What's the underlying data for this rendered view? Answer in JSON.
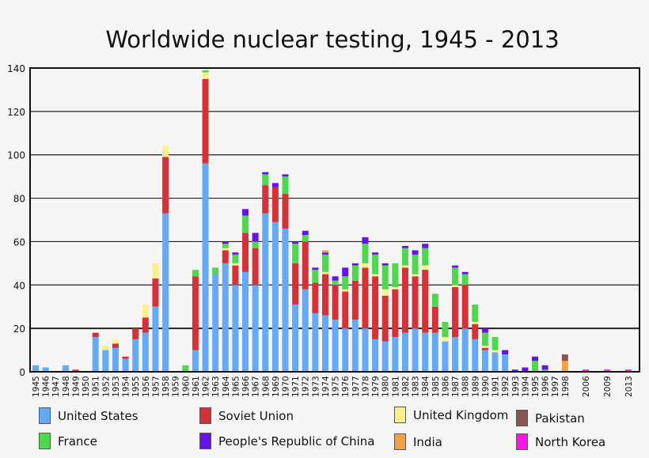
{
  "chart_data": {
    "type": "bar",
    "stacked": true,
    "title": "Worldwide nuclear testing, 1945 - 2013",
    "xlabel": "",
    "ylabel": "",
    "ylim": [
      0,
      140
    ],
    "yticks": [
      0,
      20,
      40,
      60,
      80,
      100,
      120,
      140
    ],
    "grid": true,
    "legend_position": "bottom",
    "categories": [
      "1945",
      "1946",
      "1947",
      "1948",
      "1949",
      "1950",
      "1951",
      "1952",
      "1953",
      "1954",
      "1955",
      "1956",
      "1957",
      "1958",
      "1959",
      "1960",
      "1961",
      "1962",
      "1963",
      "1964",
      "1965",
      "1966",
      "1967",
      "1968",
      "1969",
      "1970",
      "1971",
      "1972",
      "1973",
      "1974",
      "1975",
      "1976",
      "1977",
      "1978",
      "1979",
      "1980",
      "1981",
      "1982",
      "1983",
      "1984",
      "1985",
      "1986",
      "1987",
      "1988",
      "1989",
      "1990",
      "1991",
      "1992",
      "1993",
      "1994",
      "1995",
      "1996",
      "1997",
      "1998",
      "2006",
      "2009",
      "2013"
    ],
    "series": [
      {
        "name": "United States",
        "color": "#63a9fc",
        "values": [
          3,
          2,
          0,
          3,
          0,
          0,
          16,
          10,
          11,
          6,
          15,
          18,
          30,
          73,
          0,
          0,
          10,
          96,
          45,
          50,
          40,
          46,
          40,
          73,
          69,
          66,
          31,
          38,
          27,
          26,
          24,
          20,
          24,
          20,
          15,
          14,
          16,
          18,
          20,
          18,
          18,
          14,
          16,
          20,
          15,
          10,
          9,
          8,
          0,
          0,
          0,
          0,
          0,
          0,
          0,
          0,
          0
        ]
      },
      {
        "name": "Soviet Union",
        "color": "#d93036",
        "values": [
          0,
          0,
          0,
          0,
          1,
          0,
          2,
          0,
          2,
          1,
          5,
          7,
          13,
          26,
          0,
          0,
          34,
          39,
          0,
          6,
          9,
          18,
          17,
          13,
          16,
          16,
          19,
          22,
          14,
          19,
          16,
          17,
          18,
          28,
          29,
          21,
          22,
          30,
          24,
          29,
          12,
          0,
          23,
          20,
          7,
          1,
          0,
          0,
          0,
          0,
          0,
          0,
          0,
          0,
          0,
          0,
          0
        ]
      },
      {
        "name": "United Kingdom",
        "color": "#fdf08b",
        "values": [
          0,
          0,
          0,
          0,
          0,
          0,
          0,
          2,
          2,
          0,
          0,
          6,
          7,
          5,
          0,
          0,
          0,
          3,
          0,
          1,
          1,
          0,
          0,
          0,
          0,
          0,
          0,
          0,
          0,
          1,
          0,
          1,
          0,
          2,
          1,
          3,
          1,
          1,
          1,
          2,
          0,
          2,
          1,
          0,
          1,
          1,
          1,
          0,
          0,
          0,
          0,
          0,
          0,
          0,
          0,
          0,
          0
        ]
      },
      {
        "name": "France",
        "color": "#4cd94c",
        "values": [
          0,
          0,
          0,
          0,
          0,
          0,
          0,
          0,
          0,
          0,
          0,
          0,
          0,
          0,
          0,
          3,
          3,
          1,
          3,
          2,
          4,
          8,
          3,
          5,
          0,
          8,
          9,
          3,
          6,
          8,
          2,
          6,
          7,
          9,
          9,
          11,
          11,
          8,
          9,
          8,
          6,
          7,
          8,
          5,
          8,
          6,
          6,
          0,
          0,
          0,
          5,
          1,
          0,
          0,
          0,
          0,
          0
        ]
      },
      {
        "name": "People's Republic of China",
        "color": "#6611ee",
        "values": [
          0,
          0,
          0,
          0,
          0,
          0,
          0,
          0,
          0,
          0,
          0,
          0,
          0,
          0,
          0,
          0,
          0,
          0,
          0,
          1,
          1,
          3,
          4,
          1,
          2,
          1,
          1,
          2,
          1,
          1,
          2,
          4,
          1,
          3,
          1,
          1,
          0,
          1,
          2,
          2,
          0,
          0,
          1,
          1,
          0,
          2,
          0,
          2,
          1,
          2,
          2,
          2,
          0,
          0,
          0,
          0,
          0
        ]
      },
      {
        "name": "India",
        "color": "#f7a145",
        "values": [
          0,
          0,
          0,
          0,
          0,
          0,
          0,
          0,
          0,
          0,
          0,
          0,
          0,
          0,
          0,
          0,
          0,
          0,
          0,
          0,
          0,
          0,
          0,
          0,
          0,
          0,
          0,
          0,
          0,
          1,
          0,
          0,
          0,
          0,
          0,
          0,
          0,
          0,
          0,
          0,
          0,
          0,
          0,
          0,
          0,
          0,
          0,
          0,
          0,
          0,
          0,
          0,
          0,
          5,
          0,
          0,
          0
        ]
      },
      {
        "name": "Pakistan",
        "color": "#8b5353",
        "values": [
          0,
          0,
          0,
          0,
          0,
          0,
          0,
          0,
          0,
          0,
          0,
          0,
          0,
          0,
          0,
          0,
          0,
          0,
          0,
          0,
          0,
          0,
          0,
          0,
          0,
          0,
          0,
          0,
          0,
          0,
          0,
          0,
          0,
          0,
          0,
          0,
          0,
          0,
          0,
          0,
          0,
          0,
          0,
          0,
          0,
          0,
          0,
          0,
          0,
          0,
          0,
          0,
          0,
          3,
          0,
          0,
          0
        ]
      },
      {
        "name": "North Korea",
        "color": "#ff14e8",
        "values": [
          0,
          0,
          0,
          0,
          0,
          0,
          0,
          0,
          0,
          0,
          0,
          0,
          0,
          0,
          0,
          0,
          0,
          0,
          0,
          0,
          0,
          0,
          0,
          0,
          0,
          0,
          0,
          0,
          0,
          0,
          0,
          0,
          0,
          0,
          0,
          0,
          0,
          0,
          0,
          0,
          0,
          0,
          0,
          0,
          0,
          0,
          0,
          0,
          0,
          0,
          0,
          0,
          0,
          0,
          1,
          1,
          1
        ]
      }
    ]
  }
}
